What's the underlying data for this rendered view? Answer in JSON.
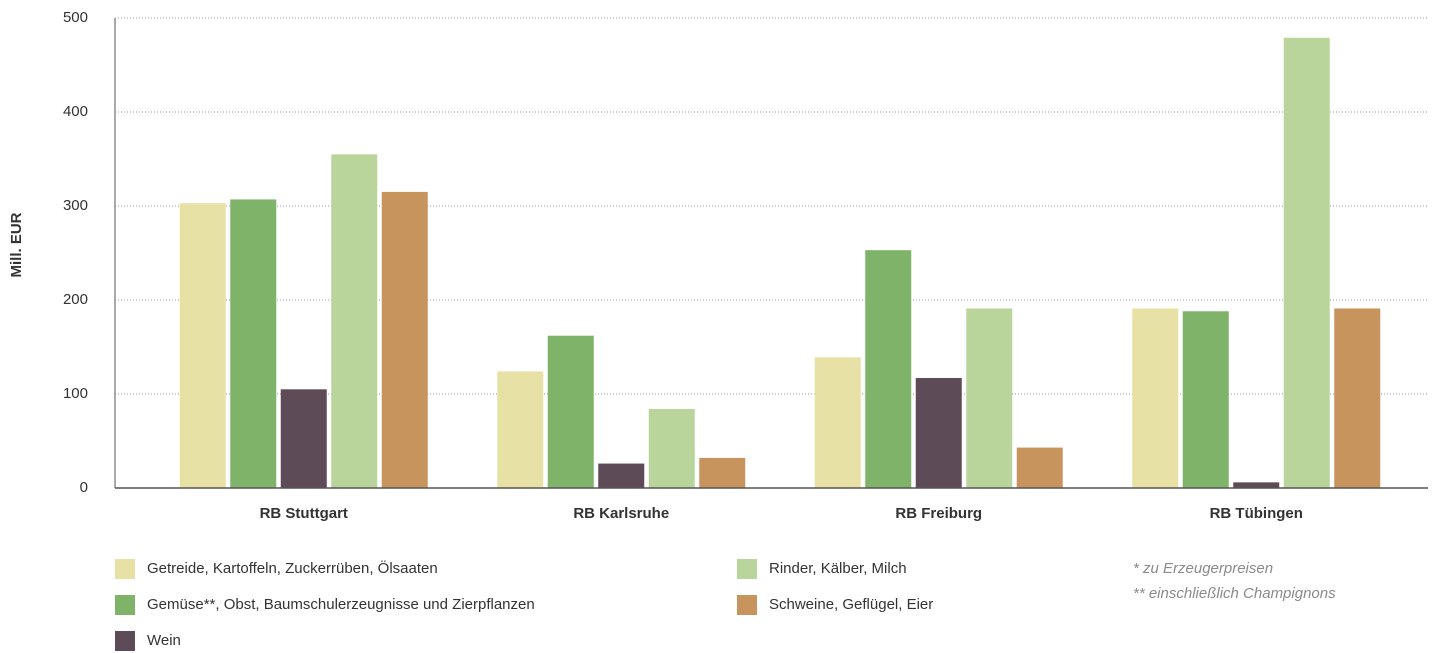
{
  "chart_data": {
    "type": "bar",
    "ylabel": "Mill. EUR",
    "categories": [
      "RB Stuttgart",
      "RB Karlsruhe",
      "RB Freiburg",
      "RB Tübingen"
    ],
    "series": [
      {
        "name": "Getreide, Kartoffeln, Zuckerrüben, Ölsaaten",
        "color": "#e8e1a6",
        "values": [
          303,
          124,
          139,
          191
        ]
      },
      {
        "name": "Gemüse**, Obst, Baumschulerzeugnisse und Zierpflanzen",
        "color": "#7fb36a",
        "values": [
          307,
          162,
          253,
          188
        ]
      },
      {
        "name": "Wein",
        "color": "#5e4b58",
        "values": [
          105,
          26,
          117,
          6
        ]
      },
      {
        "name": "Rinder, Kälber, Milch",
        "color": "#b9d59b",
        "values": [
          355,
          84,
          191,
          479
        ]
      },
      {
        "name": "Schweine, Geflügel, Eier",
        "color": "#c8945d",
        "values": [
          315,
          32,
          43,
          191
        ]
      }
    ],
    "ylim": [
      0,
      500
    ],
    "yticks": [
      0,
      100,
      200,
      300,
      400,
      500
    ],
    "grid": true,
    "notes": [
      "* zu Erzeugerpreisen",
      "** einschließlich Champignons"
    ]
  }
}
